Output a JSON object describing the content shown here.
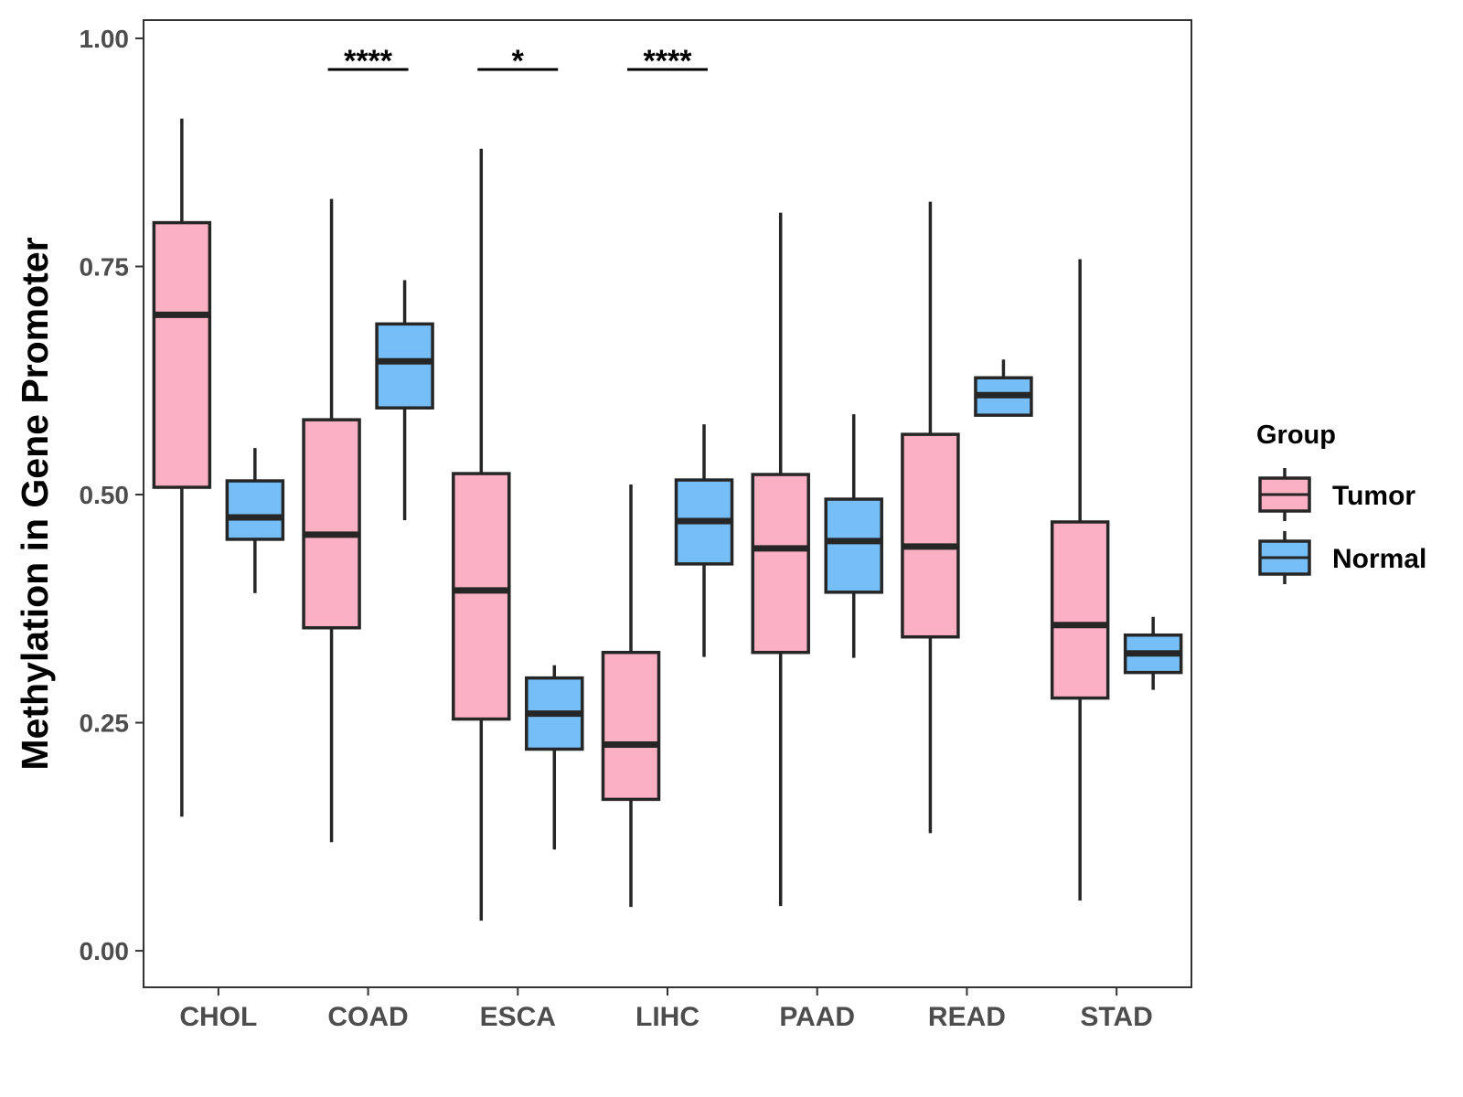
{
  "chart_data": {
    "type": "boxplot",
    "title": "",
    "xlabel": "",
    "ylabel": "Methylation in Gene Promoter",
    "ylim": [
      -0.04,
      1.02
    ],
    "yticks": [
      "0.00",
      "0.25",
      "0.50",
      "0.75",
      "1.00"
    ],
    "ytick_values": [
      0,
      0.25,
      0.5,
      0.75,
      1.0
    ],
    "categories": [
      "CHOL",
      "COAD",
      "ESCA",
      "LIHC",
      "PAAD",
      "READ",
      "STAD"
    ],
    "legend": {
      "title": "Group",
      "entries": [
        {
          "name": "Tumor",
          "color": "#FBB1C3"
        },
        {
          "name": "Normal",
          "color": "#75BEF7"
        }
      ]
    },
    "series": [
      {
        "name": "Tumor",
        "color": "#FBB1C3",
        "boxes": [
          {
            "category": "CHOL",
            "whisker_low": 0.147,
            "q1": 0.508,
            "median": 0.697,
            "q3": 0.798,
            "whisker_high": 0.912
          },
          {
            "category": "COAD",
            "whisker_low": 0.119,
            "q1": 0.354,
            "median": 0.456,
            "q3": 0.582,
            "whisker_high": 0.824
          },
          {
            "category": "ESCA",
            "whisker_low": 0.033,
            "q1": 0.254,
            "median": 0.395,
            "q3": 0.523,
            "whisker_high": 0.879
          },
          {
            "category": "LIHC",
            "whisker_low": 0.048,
            "q1": 0.166,
            "median": 0.226,
            "q3": 0.327,
            "whisker_high": 0.511
          },
          {
            "category": "PAAD",
            "whisker_low": 0.049,
            "q1": 0.327,
            "median": 0.441,
            "q3": 0.522,
            "whisker_high": 0.809
          },
          {
            "category": "READ",
            "whisker_low": 0.129,
            "q1": 0.344,
            "median": 0.443,
            "q3": 0.566,
            "whisker_high": 0.821
          },
          {
            "category": "STAD",
            "whisker_low": 0.055,
            "q1": 0.277,
            "median": 0.357,
            "q3": 0.47,
            "whisker_high": 0.758
          }
        ]
      },
      {
        "name": "Normal",
        "color": "#75BEF7",
        "boxes": [
          {
            "category": "CHOL",
            "whisker_low": 0.392,
            "q1": 0.451,
            "median": 0.475,
            "q3": 0.515,
            "whisker_high": 0.551
          },
          {
            "category": "COAD",
            "whisker_low": 0.472,
            "q1": 0.595,
            "median": 0.646,
            "q3": 0.687,
            "whisker_high": 0.735
          },
          {
            "category": "ESCA",
            "whisker_low": 0.111,
            "q1": 0.221,
            "median": 0.26,
            "q3": 0.299,
            "whisker_high": 0.313
          },
          {
            "category": "LIHC",
            "whisker_low": 0.322,
            "q1": 0.424,
            "median": 0.471,
            "q3": 0.516,
            "whisker_high": 0.577
          },
          {
            "category": "PAAD",
            "whisker_low": 0.321,
            "q1": 0.393,
            "median": 0.449,
            "q3": 0.495,
            "whisker_high": 0.588
          },
          {
            "category": "READ",
            "whisker_low": 0.587,
            "q1": 0.587,
            "median": 0.609,
            "q3": 0.628,
            "whisker_high": 0.648
          },
          {
            "category": "STAD",
            "whisker_low": 0.286,
            "q1": 0.305,
            "median": 0.326,
            "q3": 0.346,
            "whisker_high": 0.366
          }
        ]
      }
    ],
    "significance": [
      {
        "category": "COAD",
        "label": "****"
      },
      {
        "category": "ESCA",
        "label": "*"
      },
      {
        "category": "LIHC",
        "label": "****"
      }
    ]
  }
}
